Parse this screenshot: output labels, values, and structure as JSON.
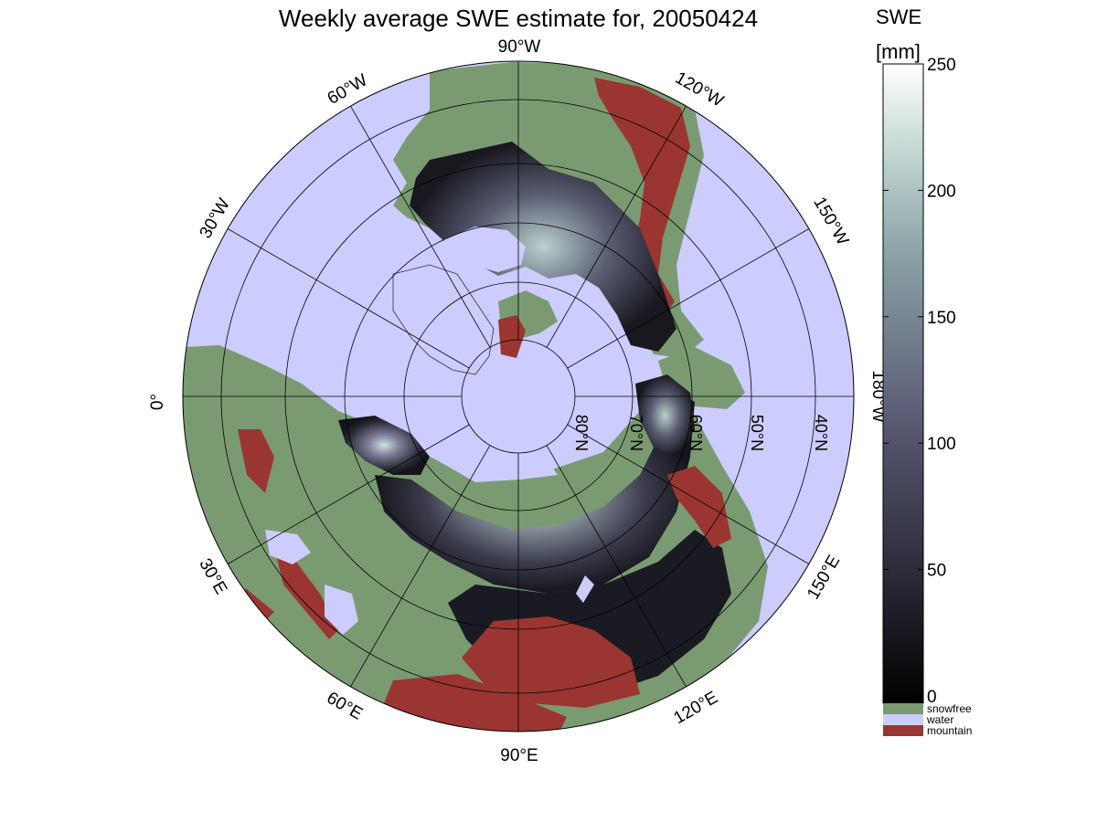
{
  "title": "Weekly average SWE estimate for, 20050424",
  "colorbar": {
    "title_line1": "SWE",
    "title_line2": "[mm]",
    "ticks": [
      "0",
      "50",
      "100",
      "150",
      "200",
      "250"
    ],
    "range": [
      0,
      250
    ],
    "legend": [
      {
        "label": "snowfree",
        "color": "#7a9b72"
      },
      {
        "label": "water",
        "color": "#ccccff"
      },
      {
        "label": "mountain",
        "color": "#9b3532"
      }
    ]
  },
  "map": {
    "projection": "north polar stereographic",
    "colors": {
      "water": "#ccccff",
      "snowfree": "#7a9b72",
      "mountain": "#9b3532",
      "snow_low": "#14141c",
      "snow_mid": "#55556e",
      "snow_high": "#cfe3df"
    },
    "longitude_labels": {
      "90W": "90°W",
      "120W": "120°W",
      "150W": "150°W",
      "180W": "180°W",
      "60W": "60°W",
      "30W": "30°W",
      "0": "0°",
      "30E": "30°E",
      "60E": "60°E",
      "90E": "90°E",
      "120E": "120°E",
      "150E": "150°E"
    },
    "latitude_labels": {
      "80N": "80°N",
      "70N": "70°N",
      "60N": "60°N",
      "50N": "50°N",
      "40N": "40°N"
    }
  }
}
